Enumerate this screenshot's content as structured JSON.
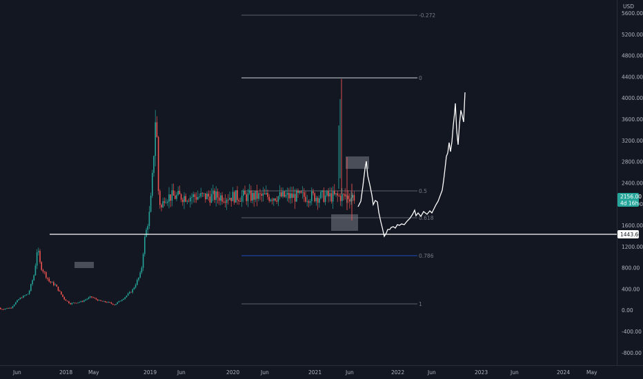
{
  "chart": {
    "currency": "USD",
    "price_axis_labels": [
      "5600.00",
      "5200.00",
      "4800.00",
      "4400.00",
      "4000.00",
      "3600.00",
      "3200.00",
      "2800.00",
      "2400.00",
      "2000.00",
      "1600.00",
      "1200.00",
      "800.00",
      "400.00",
      "0.00",
      "-400.00",
      "-800.00"
    ],
    "time_axis_labels": [
      "Jun",
      "2018",
      "May",
      "2019",
      "Jun",
      "2020",
      "Jun",
      "2021",
      "Jun",
      "2022",
      "Jun",
      "2023",
      "Jun",
      "2024",
      "May"
    ],
    "last_price": {
      "label": "2156.00",
      "countdown": "4d 16h",
      "color": "#26a69a"
    },
    "horizontal_line": {
      "label": "1443.60",
      "color": "#ffffff"
    },
    "fib_levels": [
      {
        "label": "-0.272",
        "color": "#787b86"
      },
      {
        "label": "0",
        "color": "#b2b5be"
      },
      {
        "label": "0.5",
        "color": "#787b86"
      },
      {
        "label": "0.618",
        "color": "#787b86"
      },
      {
        "label": "0.786",
        "color": "#2962ff"
      },
      {
        "label": "1",
        "color": "#787b86"
      }
    ],
    "colors": {
      "up": "#26a69a",
      "down": "#ef5350",
      "background": "#131722",
      "projection": "#ffffff",
      "box": "#787b86"
    }
  },
  "chart_data": {
    "type": "candlestick",
    "y_unit": "USD",
    "ylim": [
      -900,
      5700
    ],
    "grid": false,
    "fib_retracement_prices": {
      "-0.272": 5560,
      "0": 4380,
      "0.5": 2260,
      "0.618": 1760,
      "0.786": 1040,
      "1": 120
    },
    "horizontal_level": 1443.6,
    "last_close": 2156.0,
    "price_path": [
      {
        "date": "2017-04",
        "close": 50
      },
      {
        "date": "2017-07",
        "close": 230
      },
      {
        "date": "2017-10",
        "close": 320
      },
      {
        "date": "2017-12",
        "close": 700
      },
      {
        "date": "2018-01",
        "close": 1200
      },
      {
        "date": "2018-02",
        "close": 850
      },
      {
        "date": "2018-05",
        "close": 550
      },
      {
        "date": "2018-07",
        "close": 480
      },
      {
        "date": "2018-10",
        "close": 220
      },
      {
        "date": "2018-12",
        "close": 130
      },
      {
        "date": "2019-04",
        "close": 170
      },
      {
        "date": "2019-07",
        "close": 260
      },
      {
        "date": "2019-10",
        "close": 180
      },
      {
        "date": "2020-01",
        "close": 150
      },
      {
        "date": "2020-03",
        "close": 110
      },
      {
        "date": "2020-06",
        "close": 230
      },
      {
        "date": "2020-09",
        "close": 380
      },
      {
        "date": "2020-11",
        "close": 600
      },
      {
        "date": "2020-12",
        "close": 730
      },
      {
        "date": "2021-01",
        "close": 1300
      },
      {
        "date": "2021-02",
        "close": 1600
      },
      {
        "date": "2021-03",
        "close": 1900
      },
      {
        "date": "2021-04",
        "close": 2700
      },
      {
        "date": "2021-05",
        "close": 3900
      },
      {
        "date": "2021-05-20",
        "close": 2400
      },
      {
        "date": "2021-06",
        "close": 2100
      },
      {
        "date": "2021-07",
        "close": 1900
      },
      {
        "date": "2021-07-20",
        "close": 2156
      }
    ],
    "projection_path": [
      {
        "date": "2021-08",
        "close": 2500
      },
      {
        "date": "2021-08-20",
        "close": 2900
      },
      {
        "date": "2021-09",
        "close": 2300
      },
      {
        "date": "2021-10",
        "close": 2000
      },
      {
        "date": "2021-11",
        "close": 1500
      },
      {
        "date": "2022-01",
        "close": 1650
      },
      {
        "date": "2022-04",
        "close": 1750
      },
      {
        "date": "2022-07",
        "close": 2000
      },
      {
        "date": "2022-09",
        "close": 2800
      },
      {
        "date": "2022-10",
        "close": 3900
      },
      {
        "date": "2022-11",
        "close": 3400
      },
      {
        "date": "2022-12",
        "close": 4100
      }
    ]
  }
}
